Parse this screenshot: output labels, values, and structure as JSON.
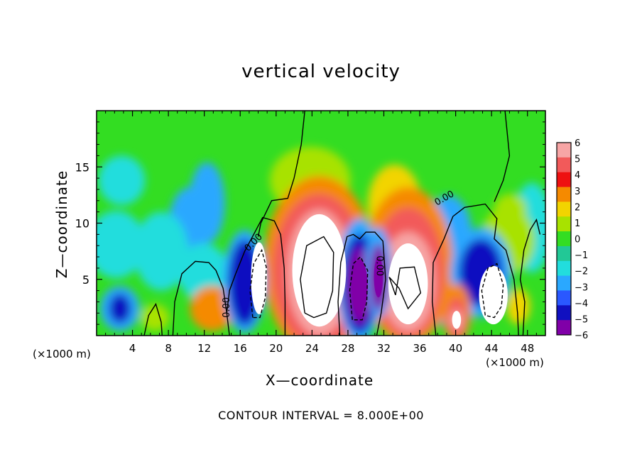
{
  "chart_data": {
    "type": "heatmap",
    "title": "vertical velocity",
    "xlabel": "X—coordinate",
    "ylabel": "Z—coordinate",
    "x_unit_left": "(×1000 m)",
    "x_unit_right": "(×1000 m)",
    "xlim": [
      0,
      50
    ],
    "ylim": [
      0,
      20
    ],
    "x_ticks": [
      4,
      8,
      12,
      16,
      20,
      24,
      28,
      32,
      36,
      40,
      44,
      48
    ],
    "y_ticks": [
      5,
      10,
      15
    ],
    "colorbar": {
      "ticks": [
        6,
        5,
        4,
        3,
        2,
        1,
        0,
        -1,
        -2,
        -3,
        -4,
        -5,
        -6
      ],
      "tick_labels": [
        "6",
        "5",
        "4",
        "3",
        "2",
        "1",
        "0",
        "−1",
        "−2",
        "−3",
        "−4",
        "−5",
        "−6"
      ],
      "colors": [
        "#f7a5a5",
        "#f25a5a",
        "#ee1111",
        "#f58a00",
        "#f2d400",
        "#a8e200",
        "#33dd22",
        "#22c896",
        "#22dddd",
        "#2aa8ff",
        "#2a58ff",
        "#1010c0",
        "#8000a8"
      ]
    },
    "contour_interval_text": "CONTOUR INTERVAL = 8.000E+00",
    "contour_labels": [
      "0.00",
      "0.00",
      "0.00",
      "0.00"
    ],
    "cells": [
      {
        "x": 24.8,
        "z": 5.6,
        "value": 8
      },
      {
        "x": 18.1,
        "z": 5.1,
        "value": 8
      },
      {
        "x": 34.7,
        "z": 4.8,
        "value": 8
      },
      {
        "x": 40.1,
        "z": 1.4,
        "value": 8
      },
      {
        "x": 44.2,
        "z": 3.6,
        "value": 8
      },
      {
        "x": 29.3,
        "z": 4.4,
        "value": -8
      },
      {
        "x": 31.4,
        "z": 5.2,
        "value": -7
      },
      {
        "x": 16.5,
        "z": 4.7,
        "value": -5
      },
      {
        "x": 42.8,
        "z": 5.6,
        "value": -5
      },
      {
        "x": 2.6,
        "z": 2.4,
        "value": -5
      },
      {
        "x": 12.9,
        "z": 2.4,
        "value": 3
      },
      {
        "x": 23.8,
        "z": 13.8,
        "value": 1.5
      },
      {
        "x": 33.2,
        "z": 11.6,
        "value": 2
      },
      {
        "x": 10.4,
        "z": 9.8,
        "value": -2.5
      },
      {
        "x": 12.3,
        "z": 11.8,
        "value": -2.5
      },
      {
        "x": 2.8,
        "z": 13.8,
        "value": -1.6
      },
      {
        "x": 2.2,
        "z": 8.1,
        "value": -2
      },
      {
        "x": 6.5,
        "z": 1.6,
        "value": 1.5
      },
      {
        "x": 47.0,
        "z": 2.6,
        "value": 2.5
      },
      {
        "x": 46.1,
        "z": 11.2,
        "value": 1.5
      },
      {
        "x": 11.9,
        "z": 5.6,
        "value": -1.0
      },
      {
        "x": 39.2,
        "z": 9.0,
        "value": -3
      },
      {
        "x": 37.8,
        "z": 2.9,
        "value": -3
      },
      {
        "x": 45.8,
        "z": 8.5,
        "value": 1
      }
    ]
  }
}
